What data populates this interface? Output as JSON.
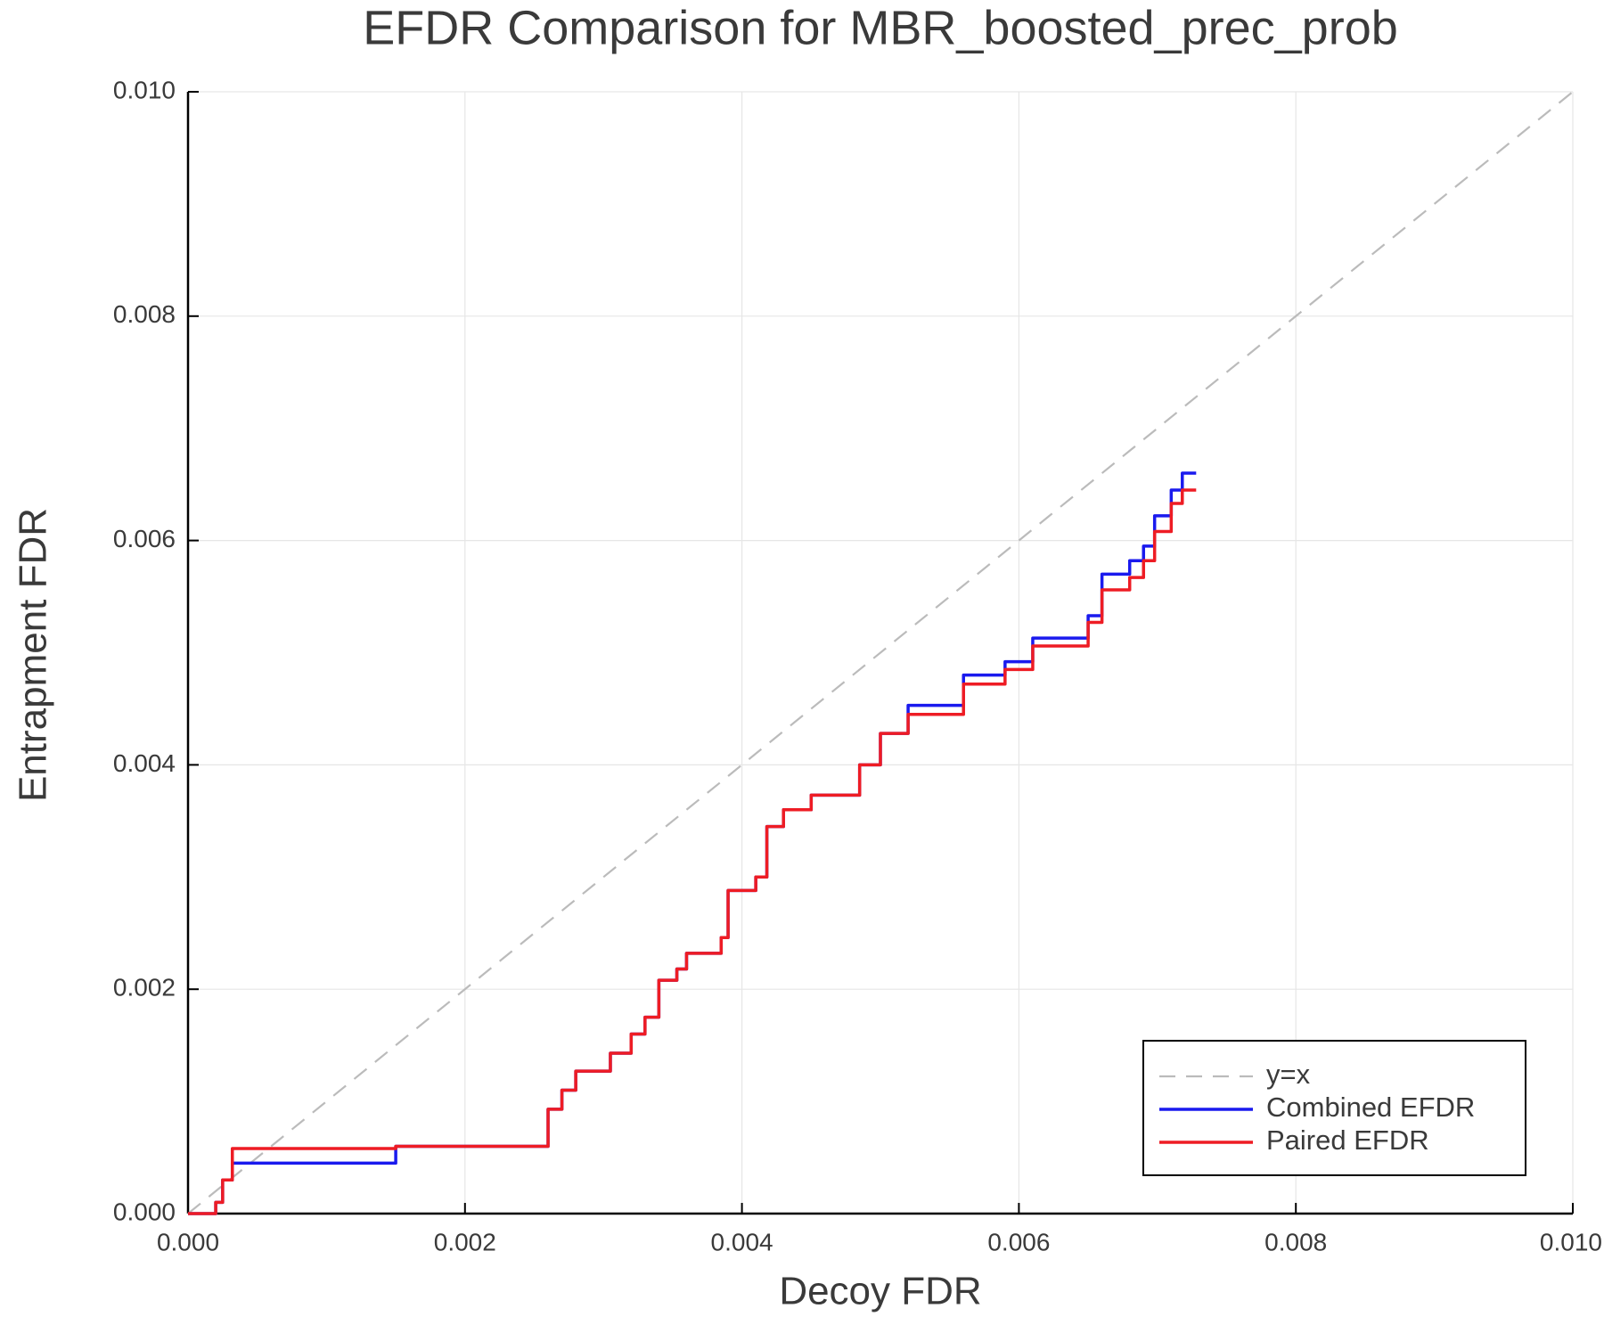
{
  "chart_data": {
    "type": "line",
    "title": "EFDR Comparison for MBR_boosted_prec_prob",
    "x_label": "Decoy FDR",
    "y_label": "Entrapment FDR",
    "drawstyle": "steps-post",
    "grid": true,
    "legend": "lower right",
    "xlim": [
      0,
      0.01
    ],
    "ylim": [
      0,
      0.01
    ],
    "xticks": [
      {
        "value": 0,
        "label": "0.000"
      },
      {
        "value": 0.002,
        "label": "0.002"
      },
      {
        "value": 0.004,
        "label": "0.004"
      },
      {
        "value": 0.006,
        "label": "0.006"
      },
      {
        "value": 0.008,
        "label": "0.008"
      },
      {
        "value": 0.01,
        "label": "0.010"
      }
    ],
    "yticks": [
      {
        "value": 0,
        "label": "0.000"
      },
      {
        "value": 0.002,
        "label": "0.002"
      },
      {
        "value": 0.004,
        "label": "0.004"
      },
      {
        "value": 0.006,
        "label": "0.006"
      },
      {
        "value": 0.008,
        "label": "0.008"
      },
      {
        "value": 0.01,
        "label": "0.010"
      }
    ],
    "x": [
      0,
      0.0002,
      0.00025,
      0.00032,
      0.0015,
      0.0026,
      0.0027,
      0.0028,
      0.00305,
      0.0032,
      0.0033,
      0.0034,
      0.00353,
      0.0036,
      0.00385,
      0.0039,
      0.0041,
      0.00418,
      0.0043,
      0.0045,
      0.00485,
      0.005,
      0.0052,
      0.0056,
      0.0059,
      0.0061,
      0.0065,
      0.0066,
      0.0068,
      0.0069,
      0.00698,
      0.0071,
      0.00718,
      0.00728
    ],
    "series": [
      {
        "name": "y=x",
        "color": "#bbbbbb",
        "dash": true,
        "x": [
          0,
          0.01
        ],
        "values": [
          0,
          0.01
        ]
      },
      {
        "name": "Combined EFDR",
        "color": "#1a1aee",
        "values": [
          0,
          0.0001,
          0.0003,
          0.00045,
          0.0006,
          0.00093,
          0.0011,
          0.00127,
          0.00143,
          0.0016,
          0.00175,
          0.00208,
          0.00218,
          0.00232,
          0.00246,
          0.00288,
          0.003,
          0.00345,
          0.0036,
          0.00373,
          0.004,
          0.00428,
          0.00453,
          0.0048,
          0.00492,
          0.00513,
          0.00533,
          0.0057,
          0.00582,
          0.00595,
          0.00622,
          0.00645,
          0.0066,
          0.0066
        ]
      },
      {
        "name": "Paired EFDR",
        "color": "#ee1c24",
        "values": [
          0,
          0.0001,
          0.0003,
          0.00058,
          0.0006,
          0.00093,
          0.0011,
          0.00127,
          0.00143,
          0.0016,
          0.00175,
          0.00208,
          0.00218,
          0.00232,
          0.00246,
          0.00288,
          0.003,
          0.00345,
          0.0036,
          0.00373,
          0.004,
          0.00428,
          0.00445,
          0.00472,
          0.00485,
          0.00506,
          0.00527,
          0.00556,
          0.00567,
          0.00582,
          0.00608,
          0.00633,
          0.00645,
          0.00645
        ]
      }
    ]
  }
}
